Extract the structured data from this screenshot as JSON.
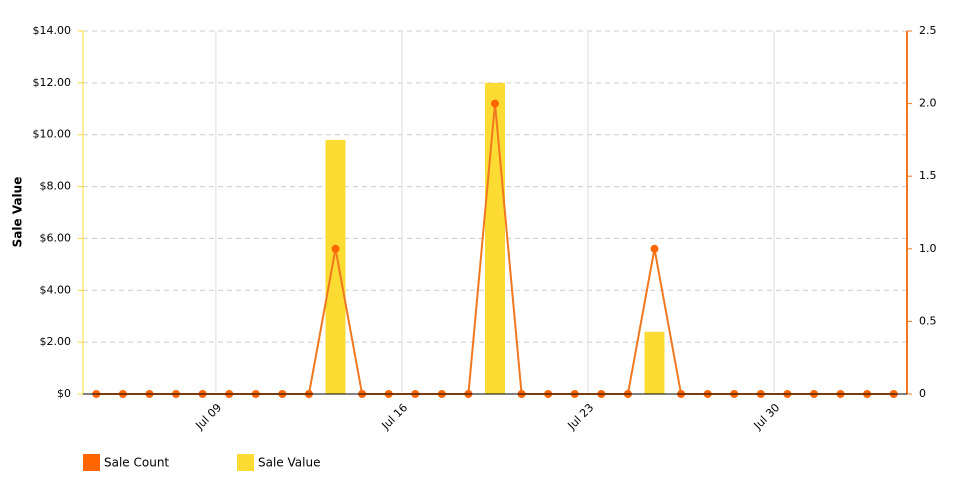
{
  "chart_data": {
    "type": "bar-line",
    "y_axis_label": "Sale Value",
    "categories": [
      null,
      null,
      null,
      null,
      null,
      "Jul 09",
      null,
      null,
      null,
      null,
      null,
      null,
      "Jul 16",
      null,
      null,
      null,
      null,
      null,
      null,
      "Jul 23",
      null,
      null,
      null,
      null,
      null,
      null,
      "Jul 30",
      null,
      null,
      null,
      null
    ],
    "series": [
      {
        "name": "Sale Count",
        "type": "line",
        "axis": "y2",
        "color": "#ff6600",
        "values": [
          0,
          0,
          0,
          0,
          0,
          0,
          0,
          0,
          0,
          1,
          0,
          0,
          0,
          0,
          0,
          2,
          0,
          0,
          0,
          0,
          0,
          1,
          0,
          0,
          0,
          0,
          0,
          0,
          0,
          0,
          0
        ]
      },
      {
        "name": "Sale Value",
        "type": "bar",
        "axis": "y",
        "color": "#fcdc32",
        "values": [
          0,
          0,
          0,
          0,
          0,
          0,
          0,
          0,
          0,
          9.8,
          0,
          0,
          0,
          0,
          0,
          12,
          0,
          0,
          0,
          0,
          0,
          2.4,
          0,
          0,
          0,
          0,
          0,
          0,
          0,
          0,
          0
        ]
      }
    ],
    "ylim": [
      0,
      14
    ],
    "yticks": [
      {
        "value": 0,
        "label": "$0"
      },
      {
        "value": 2,
        "label": "$2.00"
      },
      {
        "value": 4,
        "label": "$4.00"
      },
      {
        "value": 6,
        "label": "$6.00"
      },
      {
        "value": 8,
        "label": "$8.00"
      },
      {
        "value": 10,
        "label": "$10.00"
      },
      {
        "value": 12,
        "label": "$12.00"
      },
      {
        "value": 14,
        "label": "$14.00"
      }
    ],
    "y2lim": [
      0,
      2.5
    ],
    "y2ticks": [
      0,
      0.5,
      {
        "value": 1,
        "label": "1.0"
      },
      1.5,
      {
        "value": 2,
        "label": "2.0"
      },
      2.5
    ],
    "grid": true
  }
}
